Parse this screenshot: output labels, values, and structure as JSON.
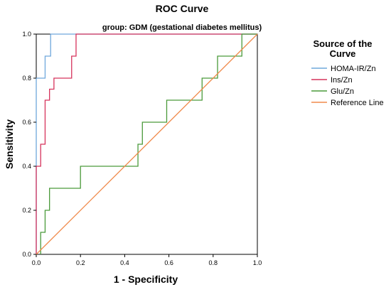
{
  "chart_data": {
    "type": "line",
    "title": "ROC Curve",
    "subtitle": "group: GDM (gestational diabetes mellitus)",
    "xlabel": "1 - Specificity",
    "ylabel": "Sensitivity",
    "xlim": [
      0,
      1
    ],
    "ylim": [
      0,
      1
    ],
    "xticks": [
      "0.0",
      "0.2",
      "0.4",
      "0.6",
      "0.8",
      "1.0"
    ],
    "yticks": [
      "0.0",
      "0.2",
      "0.4",
      "0.6",
      "0.8",
      "1.0"
    ],
    "grid": false,
    "legend": {
      "title_line1": "Source of the",
      "title_line2": "Curve",
      "placement": "right"
    },
    "series": [
      {
        "name": "HOMA-IR/Zn",
        "color": "#6fa8dc",
        "x": [
          0,
          0,
          0.04,
          0.04,
          0.065,
          0.065,
          1
        ],
        "y": [
          0,
          0.8,
          0.8,
          0.9,
          0.9,
          1.0,
          1.0
        ]
      },
      {
        "name": "Ins/Zn",
        "color": "#d6335c",
        "x": [
          0,
          0,
          0.02,
          0.02,
          0.04,
          0.04,
          0.06,
          0.06,
          0.08,
          0.08,
          0.16,
          0.16,
          0.18,
          0.18,
          1
        ],
        "y": [
          0,
          0.4,
          0.4,
          0.5,
          0.5,
          0.7,
          0.7,
          0.75,
          0.75,
          0.8,
          0.8,
          0.9,
          0.9,
          1.0,
          1.0
        ]
      },
      {
        "name": "Glu/Zn",
        "color": "#4a9a3a",
        "x": [
          0.02,
          0.02,
          0.04,
          0.04,
          0.06,
          0.06,
          0.2,
          0.2,
          0.46,
          0.46,
          0.48,
          0.48,
          0.59,
          0.59,
          0.75,
          0.75,
          0.82,
          0.82,
          0.93,
          0.93,
          1.0
        ],
        "y": [
          0,
          0.1,
          0.1,
          0.2,
          0.2,
          0.3,
          0.3,
          0.4,
          0.4,
          0.5,
          0.5,
          0.6,
          0.6,
          0.7,
          0.7,
          0.8,
          0.8,
          0.9,
          0.9,
          1.0,
          1.0
        ]
      },
      {
        "name": "Reference Line",
        "color": "#f08a4b",
        "x": [
          0,
          1
        ],
        "y": [
          0,
          1
        ]
      }
    ]
  }
}
